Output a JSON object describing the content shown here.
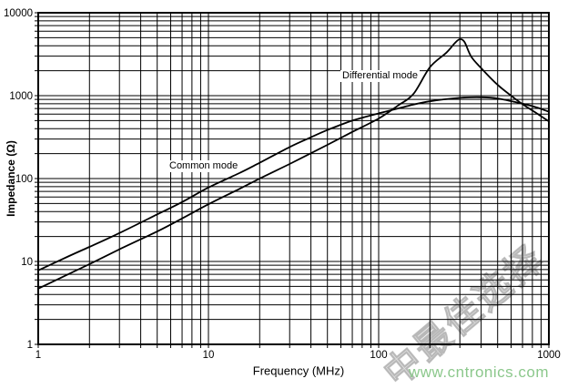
{
  "watermark": {
    "site_text": "www.cntronics.com",
    "site_color": "#8cc88c",
    "diagonal_text": "中最佳选择",
    "diagonal_color": "#a8a8a8"
  },
  "chart_data": {
    "type": "line",
    "title": "",
    "xlabel": "Frequency (MHz)",
    "ylabel": "Impedance (Ω)",
    "x_scale": "log",
    "y_scale": "log",
    "xlim": [
      1,
      1000
    ],
    "ylim": [
      1,
      10000
    ],
    "x_ticks": [
      1,
      10,
      100,
      1000
    ],
    "y_ticks": [
      1,
      10,
      100,
      1000,
      10000
    ],
    "grid": "full log-log grid with minor lines at 2-9 per decade",
    "legend_position": "inline-labels-on-plot",
    "line_color": "#000000",
    "series": [
      {
        "name": "Common mode",
        "points": [
          [
            1,
            7.8
          ],
          [
            1.5,
            11.5
          ],
          [
            2,
            15
          ],
          [
            3,
            22
          ],
          [
            5,
            37
          ],
          [
            7,
            52
          ],
          [
            10,
            78
          ],
          [
            15,
            115
          ],
          [
            20,
            155
          ],
          [
            30,
            240
          ],
          [
            40,
            315
          ],
          [
            50,
            385
          ],
          [
            70,
            500
          ],
          [
            100,
            610
          ],
          [
            150,
            755
          ],
          [
            200,
            855
          ],
          [
            300,
            940
          ],
          [
            400,
            955
          ],
          [
            500,
            925
          ],
          [
            700,
            800
          ],
          [
            850,
            720
          ],
          [
            1000,
            640
          ]
        ]
      },
      {
        "name": "Differential mode",
        "points": [
          [
            1,
            4.7
          ],
          [
            1.5,
            7
          ],
          [
            2,
            9.3
          ],
          [
            3,
            14
          ],
          [
            5,
            23
          ],
          [
            7,
            33
          ],
          [
            10,
            49
          ],
          [
            15,
            74
          ],
          [
            20,
            100
          ],
          [
            30,
            150
          ],
          [
            50,
            255
          ],
          [
            70,
            365
          ],
          [
            100,
            530
          ],
          [
            130,
            760
          ],
          [
            160,
            1050
          ],
          [
            200,
            2200
          ],
          [
            250,
            3300
          ],
          [
            280,
            4300
          ],
          [
            300,
            4800
          ],
          [
            320,
            4400
          ],
          [
            350,
            2950
          ],
          [
            400,
            2150
          ],
          [
            500,
            1350
          ],
          [
            600,
            1000
          ],
          [
            700,
            790
          ],
          [
            850,
            610
          ],
          [
            1000,
            490
          ]
        ]
      }
    ]
  }
}
